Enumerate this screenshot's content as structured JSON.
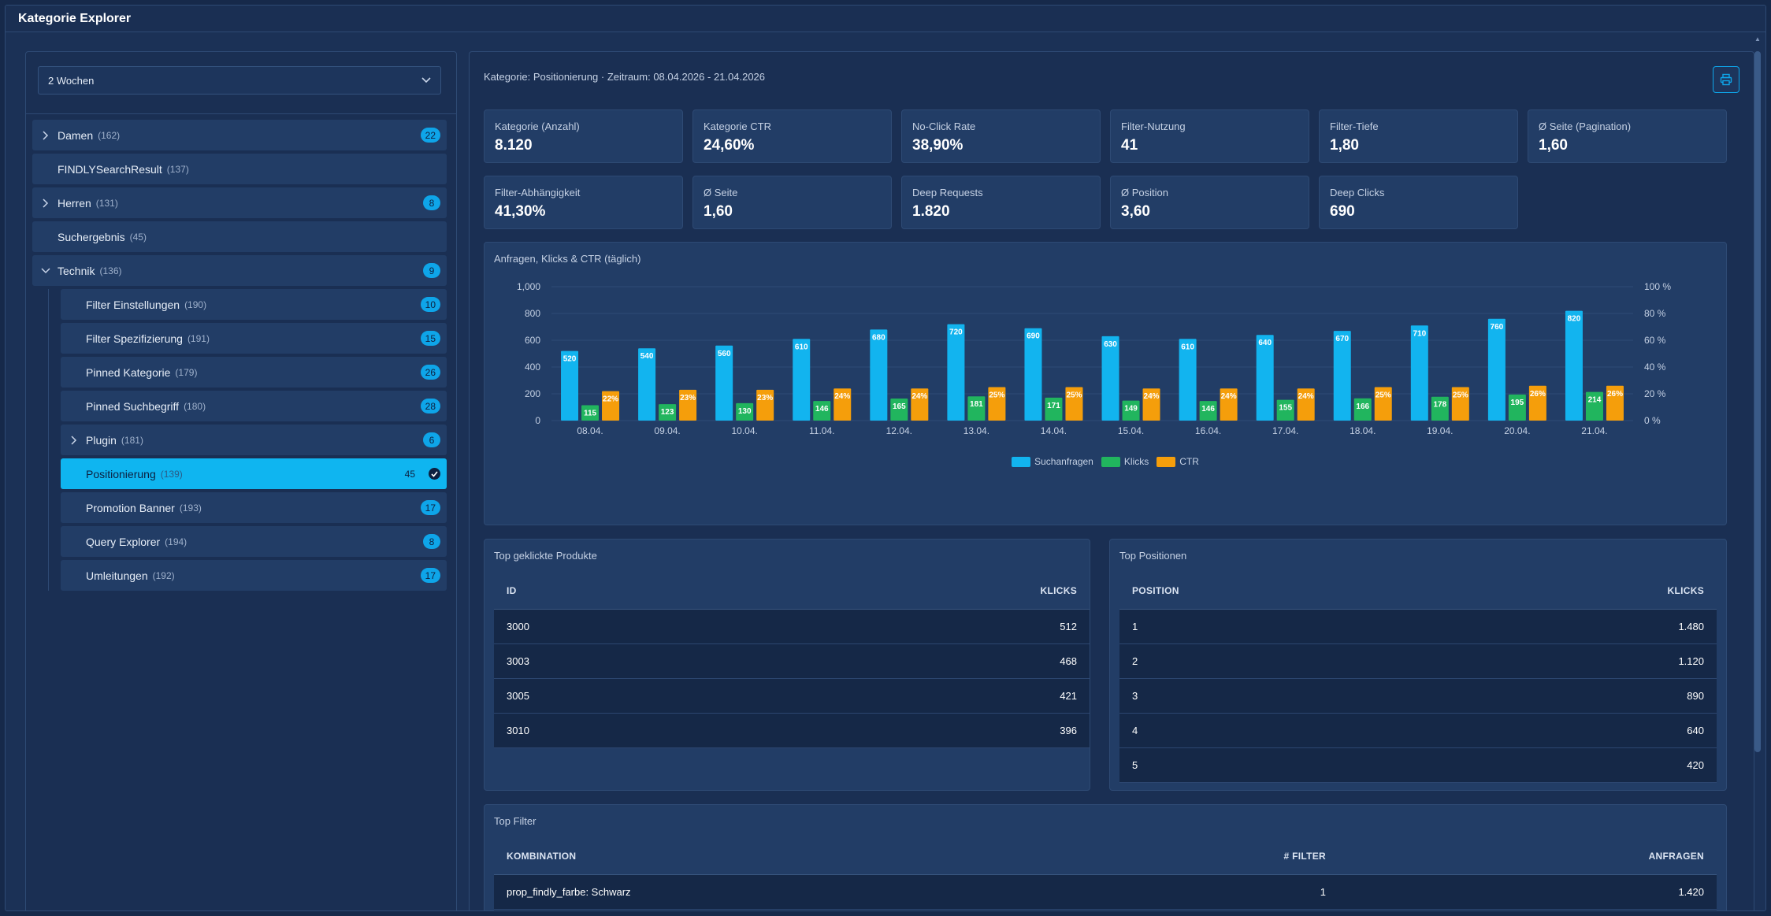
{
  "window": {
    "title": "Kategorie Explorer"
  },
  "period": {
    "selected": "2 Wochen"
  },
  "tree": {
    "items": [
      {
        "label": "Damen",
        "count": "(162)",
        "badge": "22"
      },
      {
        "label": "FINDLYSearchResult",
        "count": "(137)"
      },
      {
        "label": "Herren",
        "count": "(131)",
        "badge": "8"
      },
      {
        "label": "Suchergebnis",
        "count": "(45)"
      },
      {
        "label": "Technik",
        "count": "(136)",
        "badge": "9"
      }
    ],
    "children": [
      {
        "label": "Filter Einstellungen",
        "count": "(190)",
        "badge": "10"
      },
      {
        "label": "Filter Spezifizierung",
        "count": "(191)",
        "badge": "15"
      },
      {
        "label": "Pinned Kategorie",
        "count": "(179)",
        "badge": "26"
      },
      {
        "label": "Pinned Suchbegriff",
        "count": "(180)",
        "badge": "28"
      },
      {
        "label": "Plugin",
        "count": "(181)",
        "badge": "6"
      },
      {
        "label": "Positionierung",
        "count": "(139)",
        "badge": "45"
      },
      {
        "label": "Promotion Banner",
        "count": "(193)",
        "badge": "17"
      },
      {
        "label": "Query Explorer",
        "count": "(194)",
        "badge": "8"
      },
      {
        "label": "Umleitungen",
        "count": "(192)",
        "badge": "17"
      }
    ]
  },
  "context": "Kategorie: Positionierung · Zeitraum: 08.04.2026 - 21.04.2026",
  "kpis": [
    {
      "label": "Kategorie (Anzahl)",
      "value": "8.120"
    },
    {
      "label": "Kategorie CTR",
      "value": "24,60%"
    },
    {
      "label": "No-Click Rate",
      "value": "38,90%"
    },
    {
      "label": "Filter-Nutzung",
      "value": "41"
    },
    {
      "label": "Filter-Tiefe",
      "value": "1,80"
    },
    {
      "label": "Ø Seite (Pagination)",
      "value": "1,60"
    },
    {
      "label": "Filter-Abhängigkeit",
      "value": "41,30%"
    },
    {
      "label": "Ø Seite",
      "value": "1,60"
    },
    {
      "label": "Deep Requests",
      "value": "1.820"
    },
    {
      "label": "Ø Position",
      "value": "3,60"
    },
    {
      "label": "Deep Clicks",
      "value": "690"
    }
  ],
  "chart": {
    "title": "Anfragen, Klicks & CTR (täglich)"
  },
  "chart_data": {
    "type": "bar",
    "title": "Anfragen, Klicks & CTR (täglich)",
    "categories": [
      "08.04.",
      "09.04.",
      "10.04.",
      "11.04.",
      "12.04.",
      "13.04.",
      "14.04.",
      "15.04.",
      "16.04.",
      "17.04.",
      "18.04.",
      "19.04.",
      "20.04.",
      "21.04."
    ],
    "series": [
      {
        "name": "Suchanfragen",
        "axis": "left",
        "color": "#12b4ef",
        "values": [
          520,
          540,
          560,
          610,
          680,
          720,
          690,
          630,
          610,
          640,
          670,
          710,
          760,
          820
        ]
      },
      {
        "name": "Klicks",
        "axis": "left",
        "color": "#21b55e",
        "values": [
          115,
          123,
          130,
          146,
          165,
          181,
          171,
          149,
          146,
          155,
          166,
          178,
          195,
          214
        ]
      },
      {
        "name": "CTR",
        "axis": "right",
        "color": "#f59e0b",
        "values": [
          22,
          23,
          23,
          24,
          24,
          25,
          25,
          24,
          24,
          24,
          25,
          25,
          26,
          26
        ]
      }
    ],
    "y_left": {
      "ylim": [
        0,
        1000
      ],
      "ticks": [
        "0",
        "200",
        "400",
        "600",
        "800",
        "1,000"
      ]
    },
    "y_right": {
      "ylim": [
        0,
        100
      ],
      "ticks": [
        "0 %",
        "20 %",
        "40 %",
        "60 %",
        "80 %",
        "100 %"
      ]
    },
    "legend": "bottom"
  },
  "top_products": {
    "title": "Top geklickte Produkte",
    "headers": [
      "ID",
      "KLICKS"
    ],
    "rows": [
      [
        "3000",
        "512"
      ],
      [
        "3003",
        "468"
      ],
      [
        "3005",
        "421"
      ],
      [
        "3010",
        "396"
      ]
    ]
  },
  "top_positions": {
    "title": "Top Positionen",
    "headers": [
      "POSITION",
      "KLICKS"
    ],
    "rows": [
      [
        "1",
        "1.480"
      ],
      [
        "2",
        "1.120"
      ],
      [
        "3",
        "890"
      ],
      [
        "4",
        "640"
      ],
      [
        "5",
        "420"
      ]
    ]
  },
  "top_filter": {
    "title": "Top Filter",
    "headers": [
      "KOMBINATION",
      "# FILTER",
      "ANFRAGEN"
    ],
    "rows": [
      [
        "prop_findly_farbe: Schwarz",
        "1",
        "1.420"
      ],
      [
        "",
        "",
        ""
      ]
    ]
  }
}
